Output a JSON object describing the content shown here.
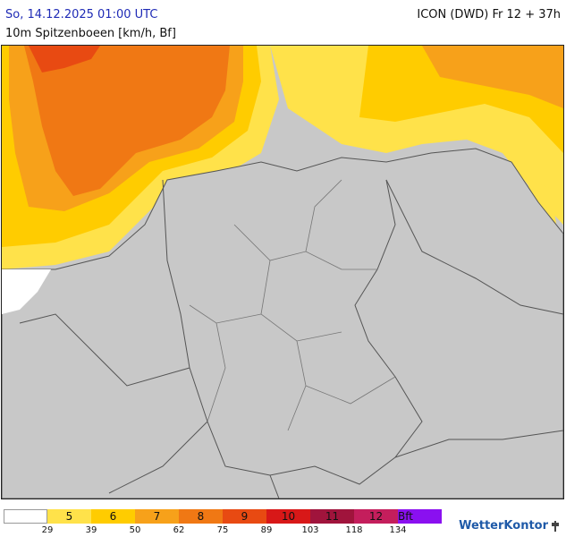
{
  "header": {
    "datetime": "So, 14.12.2025 01:00 UTC",
    "subtitle": "10m Spitzenboeen [km/h, Bf]",
    "model": "ICON (DWD) Fr 12 + 37h"
  },
  "legend": {
    "cells": [
      {
        "label": "",
        "color": "#ffffff"
      },
      {
        "label": "5",
        "color": "#ffe24a"
      },
      {
        "label": "6",
        "color": "#ffcc00"
      },
      {
        "label": "7",
        "color": "#f7a11a"
      },
      {
        "label": "8",
        "color": "#f07814"
      },
      {
        "label": "9",
        "color": "#e84a12"
      },
      {
        "label": "10",
        "color": "#d81818"
      },
      {
        "label": "11",
        "color": "#a0143c"
      },
      {
        "label": "12",
        "color": "#c41e5c"
      },
      {
        "label": "Bft",
        "color": "#8a10f0"
      }
    ],
    "ticks": [
      "29",
      "39",
      "50",
      "62",
      "75",
      "89",
      "103",
      "118",
      "134"
    ]
  },
  "brand": {
    "name": "WetterKontor"
  }
}
